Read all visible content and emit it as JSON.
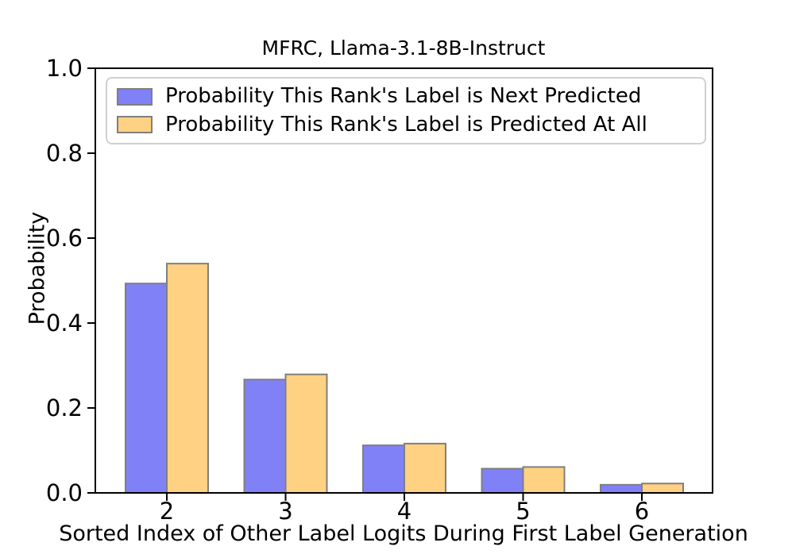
{
  "chart_data": {
    "type": "bar",
    "title": "MFRC, Llama-3.1-8B-Instruct",
    "xlabel": "Sorted Index of Other Label Logits During First Label Generation",
    "ylabel": "Probability",
    "categories": [
      "2",
      "3",
      "4",
      "5",
      "6"
    ],
    "series": [
      {
        "name": "Probability This Rank's Label is Next Predicted",
        "color": "#8181f7",
        "values": [
          0.493,
          0.267,
          0.112,
          0.057,
          0.019
        ]
      },
      {
        "name": "Probability This Rank's Label is Predicted At All",
        "color": "#ffd182",
        "values": [
          0.54,
          0.279,
          0.116,
          0.061,
          0.022
        ]
      }
    ],
    "ylim": [
      0.0,
      1.0
    ],
    "ytick_labels": [
      "0.0",
      "0.2",
      "0.4",
      "0.6",
      "0.8",
      "1.0"
    ],
    "bar_edge_color": "#7f7f7f",
    "axis_color": "#000000",
    "legend_position": "upper left",
    "grid": false
  }
}
